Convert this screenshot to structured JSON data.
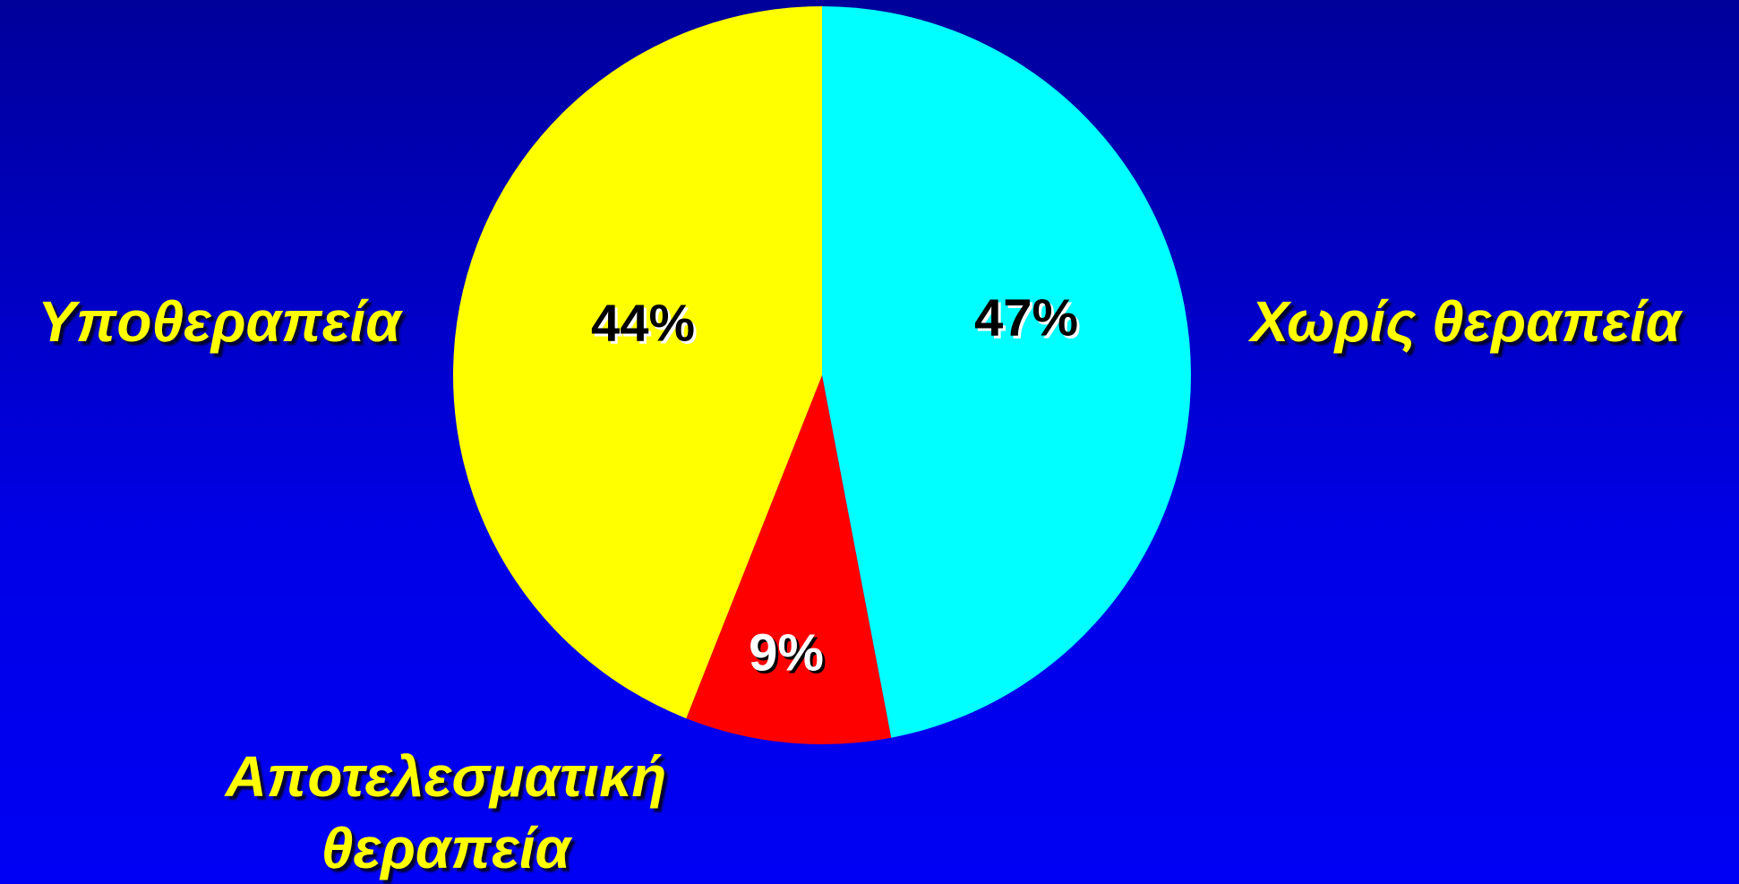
{
  "chart_data": {
    "type": "pie",
    "categories": [
      "Χωρίς θεραπεία",
      "Αποτελεσματική θεραπεία",
      "Υποθεραπεία"
    ],
    "values": [
      47,
      9,
      44
    ],
    "value_labels": [
      "47%",
      "9%",
      "44%"
    ],
    "colors": [
      "#00ffff",
      "#ff0000",
      "#ffff00"
    ]
  }
}
